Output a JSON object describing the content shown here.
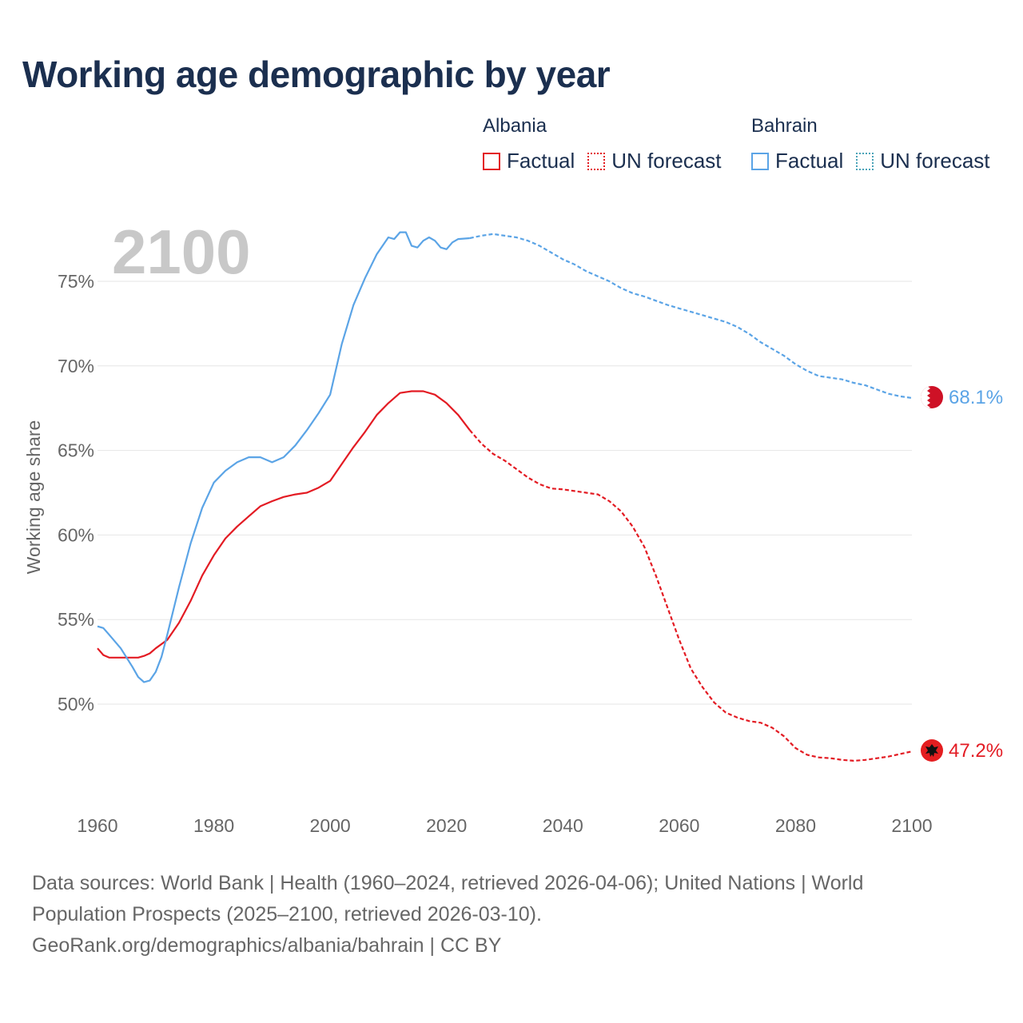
{
  "title": "Working age demographic by year",
  "year_label": "2100",
  "legend": {
    "albania": {
      "name": "Albania",
      "factual": "Factual",
      "forecast": "UN forecast",
      "color": "#e31b23"
    },
    "bahrain": {
      "name": "Bahrain",
      "factual": "Factual",
      "forecast": "UN forecast",
      "color": "#5ba4e6"
    }
  },
  "footer": {
    "line1": "Data sources: World Bank | Health (1960–2024, retrieved 2026-04-06); United Nations | World",
    "line2": "Population Prospects (2025–2100, retrieved 2026-03-10).",
    "line3": "GeoRank.org/demographics/albania/bahrain | CC BY"
  },
  "chart_data": {
    "type": "line",
    "title": "Working age demographic by year",
    "xlabel": "",
    "ylabel": "Working age share",
    "xlim": [
      1960,
      2100
    ],
    "ylim": [
      44.5,
      78
    ],
    "x_ticks": [
      1960,
      1980,
      2000,
      2020,
      2040,
      2060,
      2080,
      2100
    ],
    "y_ticks": [
      50,
      55,
      60,
      65,
      70,
      75
    ],
    "y_tick_labels": [
      "50%",
      "55%",
      "60%",
      "65%",
      "70%",
      "75%"
    ],
    "factual_end_year": 2024,
    "series": [
      {
        "name": "Albania",
        "color": "#e31b23",
        "end_label": "47.2%",
        "points": [
          [
            1960,
            53.3
          ],
          [
            1961,
            52.9
          ],
          [
            1962,
            52.75
          ],
          [
            1964,
            52.75
          ],
          [
            1966,
            52.75
          ],
          [
            1967,
            52.75
          ],
          [
            1968,
            52.85
          ],
          [
            1969,
            53.0
          ],
          [
            1970,
            53.3
          ],
          [
            1972,
            53.8
          ],
          [
            1974,
            54.8
          ],
          [
            1976,
            56.1
          ],
          [
            1978,
            57.6
          ],
          [
            1980,
            58.8
          ],
          [
            1982,
            59.8
          ],
          [
            1984,
            60.5
          ],
          [
            1986,
            61.1
          ],
          [
            1988,
            61.7
          ],
          [
            1990,
            62.0
          ],
          [
            1992,
            62.25
          ],
          [
            1994,
            62.4
          ],
          [
            1996,
            62.5
          ],
          [
            1998,
            62.8
          ],
          [
            2000,
            63.2
          ],
          [
            2002,
            64.2
          ],
          [
            2004,
            65.2
          ],
          [
            2006,
            66.1
          ],
          [
            2008,
            67.1
          ],
          [
            2010,
            67.8
          ],
          [
            2012,
            68.4
          ],
          [
            2014,
            68.5
          ],
          [
            2016,
            68.5
          ],
          [
            2018,
            68.3
          ],
          [
            2020,
            67.8
          ],
          [
            2022,
            67.1
          ],
          [
            2024,
            66.2
          ],
          [
            2026,
            65.4
          ],
          [
            2028,
            64.8
          ],
          [
            2030,
            64.4
          ],
          [
            2032,
            63.9
          ],
          [
            2034,
            63.4
          ],
          [
            2036,
            63.0
          ],
          [
            2038,
            62.75
          ],
          [
            2040,
            62.7
          ],
          [
            2042,
            62.6
          ],
          [
            2044,
            62.5
          ],
          [
            2046,
            62.4
          ],
          [
            2048,
            62.0
          ],
          [
            2050,
            61.4
          ],
          [
            2052,
            60.5
          ],
          [
            2054,
            59.3
          ],
          [
            2056,
            57.6
          ],
          [
            2058,
            55.7
          ],
          [
            2060,
            53.8
          ],
          [
            2062,
            52.1
          ],
          [
            2064,
            51.0
          ],
          [
            2066,
            50.1
          ],
          [
            2068,
            49.5
          ],
          [
            2070,
            49.2
          ],
          [
            2072,
            49.0
          ],
          [
            2074,
            48.9
          ],
          [
            2076,
            48.6
          ],
          [
            2078,
            48.1
          ],
          [
            2080,
            47.4
          ],
          [
            2082,
            47.0
          ],
          [
            2084,
            46.85
          ],
          [
            2086,
            46.8
          ],
          [
            2088,
            46.7
          ],
          [
            2090,
            46.65
          ],
          [
            2092,
            46.7
          ],
          [
            2094,
            46.8
          ],
          [
            2096,
            46.9
          ],
          [
            2098,
            47.05
          ],
          [
            2100,
            47.2
          ]
        ]
      },
      {
        "name": "Bahrain",
        "color": "#5ba4e6",
        "end_label": "68.1%",
        "points": [
          [
            1960,
            54.6
          ],
          [
            1961,
            54.5
          ],
          [
            1962,
            54.1
          ],
          [
            1964,
            53.3
          ],
          [
            1966,
            52.2
          ],
          [
            1967,
            51.6
          ],
          [
            1968,
            51.3
          ],
          [
            1969,
            51.4
          ],
          [
            1970,
            51.9
          ],
          [
            1971,
            52.8
          ],
          [
            1972,
            54.1
          ],
          [
            1974,
            56.9
          ],
          [
            1976,
            59.5
          ],
          [
            1978,
            61.6
          ],
          [
            1980,
            63.1
          ],
          [
            1982,
            63.8
          ],
          [
            1984,
            64.3
          ],
          [
            1986,
            64.6
          ],
          [
            1988,
            64.6
          ],
          [
            1990,
            64.3
          ],
          [
            1992,
            64.6
          ],
          [
            1994,
            65.3
          ],
          [
            1996,
            66.2
          ],
          [
            1998,
            67.2
          ],
          [
            2000,
            68.3
          ],
          [
            2002,
            71.3
          ],
          [
            2004,
            73.6
          ],
          [
            2006,
            75.2
          ],
          [
            2008,
            76.6
          ],
          [
            2010,
            77.6
          ],
          [
            2011,
            77.5
          ],
          [
            2012,
            77.9
          ],
          [
            2013,
            77.9
          ],
          [
            2014,
            77.1
          ],
          [
            2015,
            77.0
          ],
          [
            2016,
            77.4
          ],
          [
            2017,
            77.6
          ],
          [
            2018,
            77.4
          ],
          [
            2019,
            77.0
          ],
          [
            2020,
            76.9
          ],
          [
            2021,
            77.3
          ],
          [
            2022,
            77.5
          ],
          [
            2024,
            77.55
          ],
          [
            2026,
            77.7
          ],
          [
            2028,
            77.8
          ],
          [
            2030,
            77.7
          ],
          [
            2032,
            77.6
          ],
          [
            2034,
            77.4
          ],
          [
            2036,
            77.1
          ],
          [
            2038,
            76.7
          ],
          [
            2040,
            76.3
          ],
          [
            2042,
            76.0
          ],
          [
            2044,
            75.6
          ],
          [
            2046,
            75.3
          ],
          [
            2048,
            75.0
          ],
          [
            2050,
            74.6
          ],
          [
            2052,
            74.3
          ],
          [
            2054,
            74.1
          ],
          [
            2056,
            73.85
          ],
          [
            2058,
            73.6
          ],
          [
            2060,
            73.4
          ],
          [
            2062,
            73.2
          ],
          [
            2064,
            73.0
          ],
          [
            2066,
            72.8
          ],
          [
            2068,
            72.6
          ],
          [
            2070,
            72.3
          ],
          [
            2072,
            71.9
          ],
          [
            2074,
            71.4
          ],
          [
            2076,
            71.0
          ],
          [
            2078,
            70.6
          ],
          [
            2080,
            70.1
          ],
          [
            2082,
            69.7
          ],
          [
            2084,
            69.4
          ],
          [
            2086,
            69.3
          ],
          [
            2088,
            69.2
          ],
          [
            2090,
            69.0
          ],
          [
            2092,
            68.85
          ],
          [
            2094,
            68.6
          ],
          [
            2096,
            68.35
          ],
          [
            2098,
            68.2
          ],
          [
            2100,
            68.1
          ]
        ]
      }
    ]
  }
}
